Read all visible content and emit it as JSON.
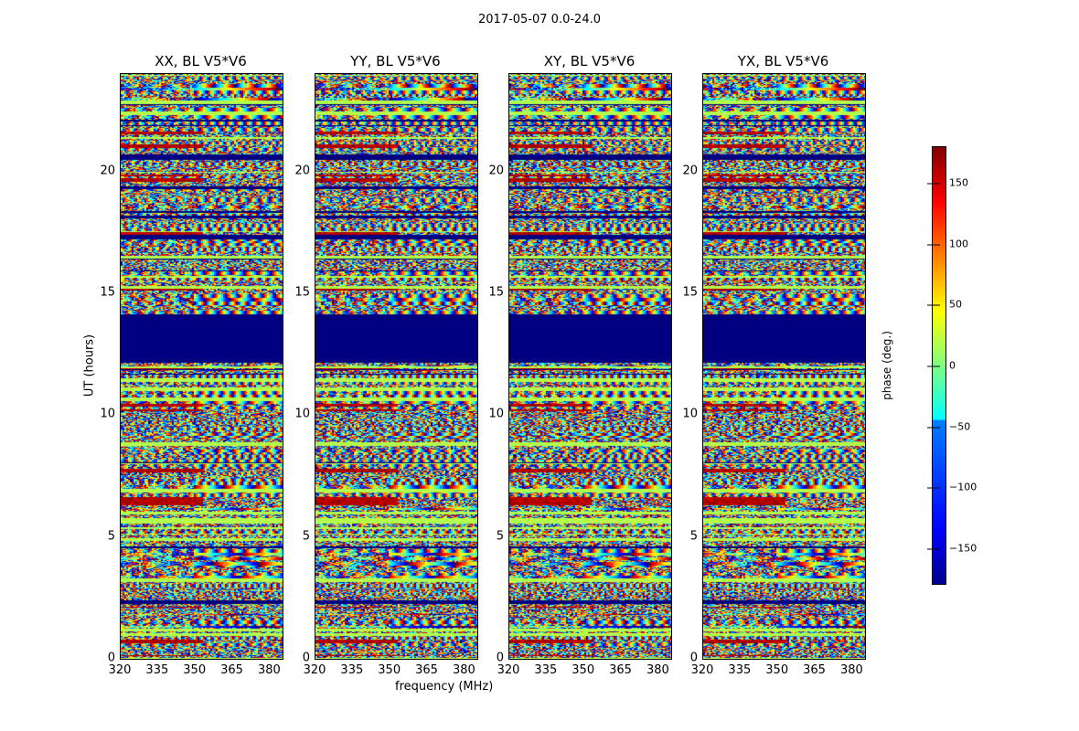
{
  "chart_data": {
    "type": "heatmap",
    "title": "2017-05-07 0.0-24.0",
    "xlabel": "frequency (MHz)",
    "ylabel": "UT (hours)",
    "xlim": [
      320,
      385
    ],
    "ylim": [
      0,
      24
    ],
    "xticks": [
      "320",
      "335",
      "350",
      "365",
      "380"
    ],
    "yticks": [
      "0",
      "5",
      "10",
      "15",
      "20"
    ],
    "panels": [
      {
        "title": "XX, BL V5*V6"
      },
      {
        "title": "YY, BL V5*V6"
      },
      {
        "title": "XY, BL V5*V6"
      },
      {
        "title": "YX, BL V5*V6"
      }
    ],
    "colorbar": {
      "label": "phase (deg.)",
      "clim": [
        -180,
        180
      ],
      "ticks": [
        "150",
        "100",
        "50",
        "0",
        "−50",
        "−100",
        "−150"
      ],
      "colormap": "jet"
    },
    "flagged_ut_ranges": [
      [
        12.2,
        14.2
      ],
      [
        20.5,
        20.7
      ],
      [
        19.3,
        19.4
      ],
      [
        17.3,
        17.5
      ]
    ]
  }
}
